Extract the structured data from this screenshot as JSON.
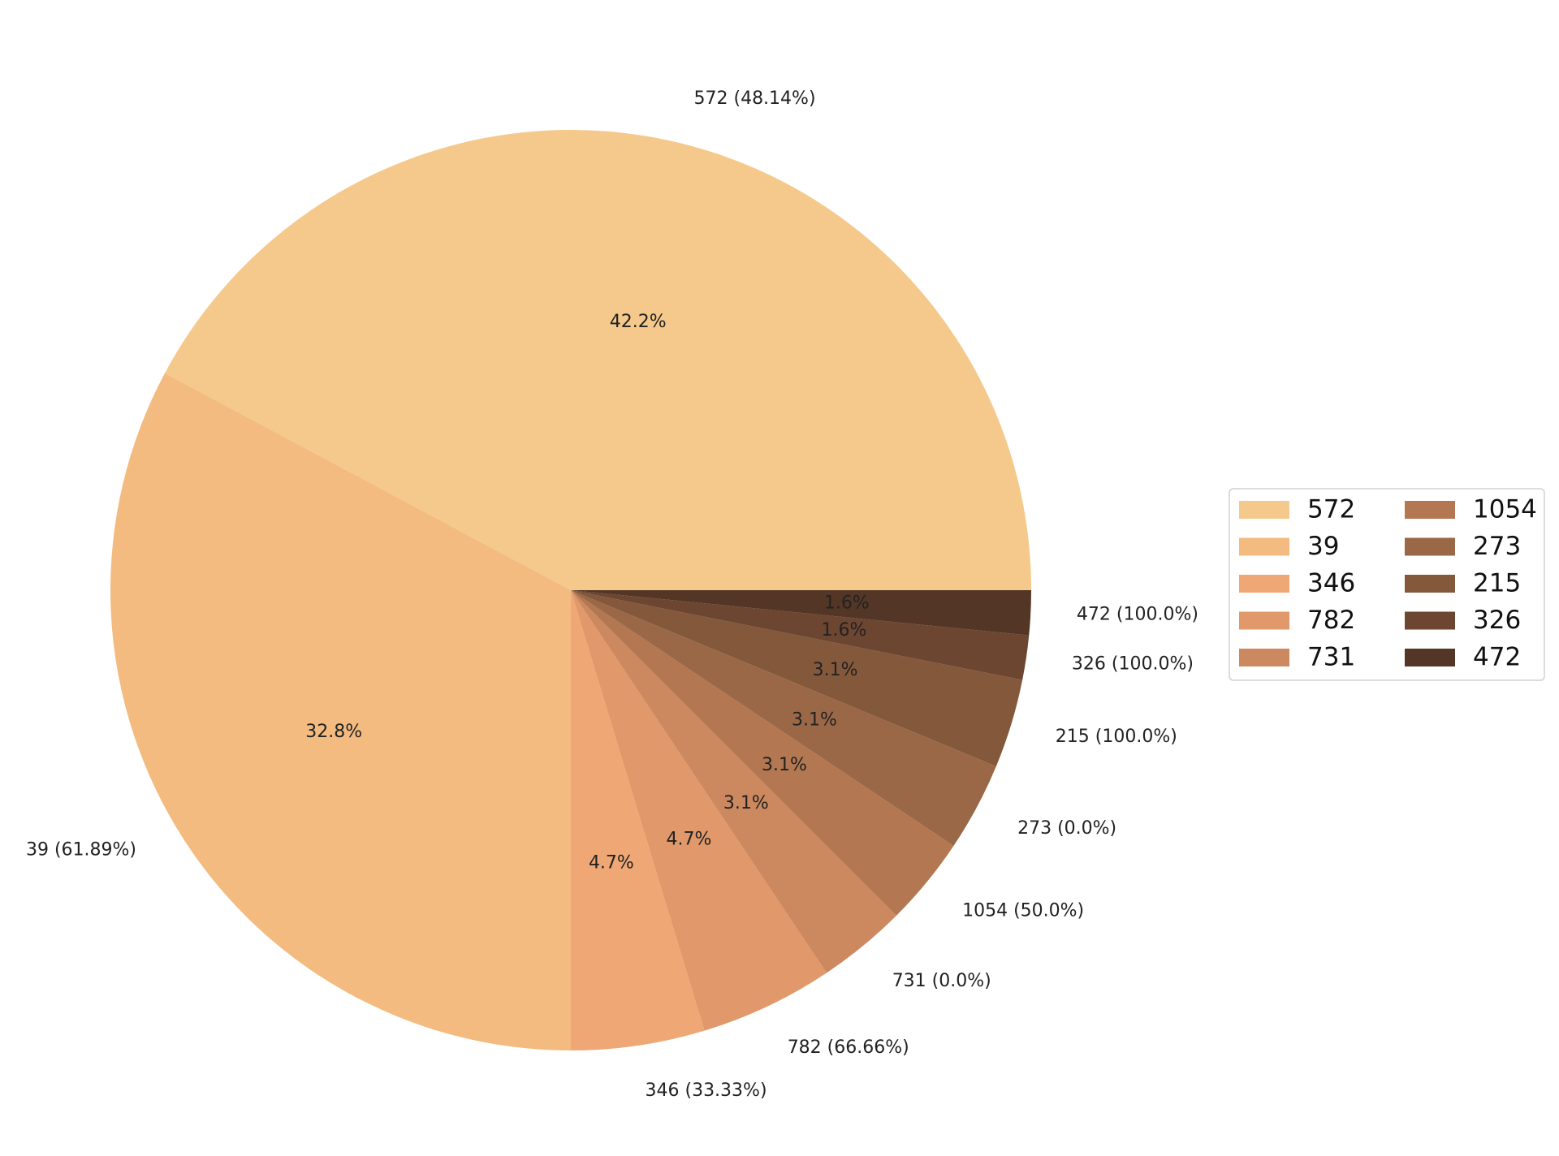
{
  "chart_data": {
    "type": "pie",
    "title": "",
    "start_angle_deg": 0,
    "direction": "counterclockwise",
    "slices": [
      {
        "label": "572",
        "value": 27,
        "pct_label": "42.2%",
        "outer_label": "572 (48.14%)",
        "color": "#f5c98b"
      },
      {
        "label": "39",
        "value": 21,
        "pct_label": "32.8%",
        "outer_label": "39 (61.89%)",
        "color": "#f3bb80"
      },
      {
        "label": "346",
        "value": 3,
        "pct_label": "4.7%",
        "outer_label": "346 (33.33%)",
        "color": "#efa875"
      },
      {
        "label": "782",
        "value": 3,
        "pct_label": "4.7%",
        "outer_label": "782 (66.66%)",
        "color": "#e1986a"
      },
      {
        "label": "731",
        "value": 2,
        "pct_label": "3.1%",
        "outer_label": "731 (0.0%)",
        "color": "#cc895f"
      },
      {
        "label": "1054",
        "value": 2,
        "pct_label": "3.1%",
        "outer_label": "1054 (50.0%)",
        "color": "#b37852"
      },
      {
        "label": "273",
        "value": 2,
        "pct_label": "3.1%",
        "outer_label": "273 (0.0%)",
        "color": "#9a6846"
      },
      {
        "label": "215",
        "value": 2,
        "pct_label": "3.1%",
        "outer_label": "215 (100.0%)",
        "color": "#83583b"
      },
      {
        "label": "326",
        "value": 1,
        "pct_label": "1.6%",
        "outer_label": "326 (100.0%)",
        "color": "#6c4630"
      },
      {
        "label": "472",
        "value": 1,
        "pct_label": "1.6%",
        "outer_label": "472 (100.0%)",
        "color": "#533625"
      }
    ],
    "legend": {
      "placement": "right",
      "columns": 2,
      "entries": [
        "572",
        "39",
        "346",
        "782",
        "731",
        "1054",
        "273",
        "215",
        "326",
        "472"
      ]
    }
  }
}
